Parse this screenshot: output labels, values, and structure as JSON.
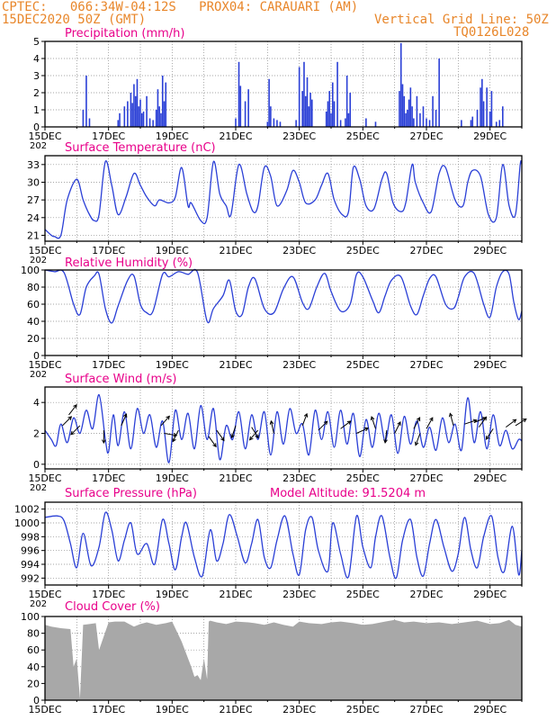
{
  "header": {
    "line1_left": "CPTEC:   066:34W-04:12S   PROX04: CARAUARI (AM)",
    "line2_left": "15DEC2020 50Z (GMT)",
    "line2_right": "Vertical Grid Line: 50Z",
    "line3_right": "TQ0126L028"
  },
  "colors": {
    "header": "#e8862a",
    "title": "#e8008a",
    "line": "#2a3fd6",
    "bar": "#2a3fd6",
    "cloud": "#a8a8a8",
    "arrow": "#000000",
    "grid": "#888888"
  },
  "x_axis": {
    "tick_labels": [
      "15DEC",
      "17DEC",
      "19DEC",
      "21DEC",
      "23DEC",
      "25DEC",
      "27DEC",
      "29DEC"
    ],
    "cut_label": "202"
  },
  "chart_data": [
    {
      "id": "precip",
      "type": "bar",
      "title": "Precipitation (mm/h)",
      "ylim": [
        0,
        5
      ],
      "yticks": [
        "0",
        "1",
        "2",
        "3",
        "4",
        "5"
      ],
      "x_days": [
        1.2,
        1.3,
        1.4,
        2.3,
        2.35,
        2.5,
        2.6,
        2.7,
        2.75,
        2.8,
        2.85,
        2.9,
        2.95,
        3.0,
        3.05,
        3.1,
        3.2,
        3.3,
        3.4,
        3.5,
        3.55,
        3.6,
        3.65,
        3.7,
        3.75,
        3.8,
        6.0,
        6.1,
        6.15,
        6.3,
        6.4,
        7.0,
        7.05,
        7.1,
        7.2,
        7.3,
        7.4,
        7.9,
        8.0,
        8.1,
        8.15,
        8.2,
        8.25,
        8.3,
        8.35,
        8.4,
        8.85,
        8.9,
        8.95,
        9.0,
        9.05,
        9.1,
        9.2,
        9.3,
        9.45,
        9.5,
        9.55,
        9.6,
        10.1,
        10.4,
        11.15,
        11.2,
        11.25,
        11.3,
        11.35,
        11.4,
        11.45,
        11.5,
        11.55,
        11.6,
        11.7,
        11.8,
        11.9,
        12.0,
        12.1,
        12.2,
        12.3,
        12.4,
        13.1,
        13.4,
        13.45,
        13.6,
        13.7,
        13.75,
        13.8,
        13.9,
        14.0,
        14.05,
        14.2,
        14.3,
        14.4
      ],
      "values": [
        1.0,
        3.0,
        0.5,
        0.4,
        0.8,
        1.2,
        1.5,
        2.0,
        1.4,
        2.5,
        1.8,
        2.8,
        1.2,
        1.6,
        0.8,
        0.9,
        1.8,
        0.5,
        0.4,
        1.0,
        2.2,
        1.2,
        0.8,
        3.0,
        1.5,
        2.6,
        0.5,
        3.8,
        2.4,
        1.5,
        2.2,
        0.3,
        2.8,
        1.2,
        0.5,
        0.4,
        0.3,
        0.4,
        3.5,
        2.1,
        3.8,
        1.8,
        2.9,
        1.2,
        2.0,
        1.6,
        0.9,
        1.5,
        2.1,
        0.8,
        2.6,
        1.5,
        3.8,
        0.4,
        0.5,
        3.0,
        0.8,
        2.0,
        0.5,
        0.3,
        2.1,
        4.9,
        2.5,
        1.8,
        0.8,
        1.0,
        1.6,
        2.3,
        1.2,
        0.5,
        1.8,
        0.8,
        1.2,
        0.5,
        0.4,
        1.8,
        1.0,
        4.0,
        0.4,
        0.4,
        0.6,
        1.0,
        2.3,
        2.8,
        1.5,
        2.3,
        0.9,
        2.1,
        0.3,
        0.4,
        1.2
      ]
    },
    {
      "id": "temp",
      "type": "line",
      "title": "Surface Temperature (nC)",
      "ylim": [
        20,
        34.5
      ],
      "yticks": [
        "21",
        "24",
        "27",
        "30",
        "33"
      ],
      "x_days": [
        0,
        0.2,
        0.3,
        0.5,
        0.7,
        1.0,
        1.2,
        1.4,
        1.55,
        1.7,
        1.9,
        2.1,
        2.3,
        2.55,
        2.8,
        3.0,
        3.2,
        3.45,
        3.6,
        3.9,
        4.1,
        4.3,
        4.5,
        4.6,
        4.9,
        5.1,
        5.3,
        5.5,
        5.7,
        5.85,
        6.1,
        6.35,
        6.55,
        6.7,
        6.9,
        7.1,
        7.3,
        7.6,
        7.8,
        8.0,
        8.2,
        8.5,
        8.7,
        8.9,
        9.1,
        9.35,
        9.55,
        9.7,
        9.9,
        10.1,
        10.35,
        10.6,
        10.75,
        10.95,
        11.2,
        11.35,
        11.55,
        11.65,
        11.9,
        12.15,
        12.4,
        12.6,
        12.9,
        13.15,
        13.3,
        13.45,
        13.7,
        13.95,
        14.2,
        14.4,
        14.6,
        14.8,
        14.95,
        15.0
      ],
      "values": [
        22.0,
        21.0,
        20.8,
        21.0,
        27.0,
        30.5,
        27.0,
        24.5,
        23.5,
        24.5,
        33.5,
        29.5,
        24.5,
        27.5,
        31.5,
        29.5,
        27.5,
        26.0,
        27.0,
        26.5,
        27.5,
        32.5,
        26.0,
        26.5,
        23.5,
        24.0,
        33.5,
        28.0,
        26.0,
        24.5,
        33.0,
        28.0,
        25.0,
        26.0,
        32.5,
        31.0,
        26.0,
        28.5,
        32.0,
        30.0,
        26.5,
        27.0,
        29.5,
        31.5,
        27.0,
        24.5,
        25.0,
        32.5,
        30.5,
        26.0,
        25.5,
        30.5,
        31.5,
        26.5,
        25.0,
        26.5,
        33.0,
        30.0,
        26.5,
        25.0,
        31.5,
        32.5,
        27.0,
        26.0,
        30.0,
        32.0,
        31.0,
        24.5,
        24.0,
        33.0,
        26.0,
        24.5,
        33.0,
        33.0
      ]
    },
    {
      "id": "rh",
      "type": "line",
      "title": "Relative Humidity (%)",
      "ylim": [
        0,
        100
      ],
      "yticks": [
        "0",
        "20",
        "40",
        "60",
        "80",
        "100"
      ],
      "x_days": [
        0,
        0.3,
        0.6,
        0.9,
        1.1,
        1.3,
        1.55,
        1.7,
        1.9,
        2.1,
        2.3,
        2.6,
        2.8,
        3.0,
        3.2,
        3.4,
        3.7,
        3.9,
        4.2,
        4.5,
        4.8,
        5.1,
        5.3,
        5.6,
        5.8,
        6.0,
        6.2,
        6.4,
        6.6,
        6.9,
        7.2,
        7.5,
        7.8,
        8.1,
        8.3,
        8.55,
        8.8,
        9.0,
        9.3,
        9.6,
        9.8,
        10.0,
        10.3,
        10.5,
        10.7,
        10.9,
        11.2,
        11.5,
        11.7,
        11.9,
        12.1,
        12.3,
        12.6,
        12.85,
        13.0,
        13.2,
        13.5,
        13.8,
        14.0,
        14.2,
        14.4,
        14.6,
        14.75,
        14.9,
        15.0
      ],
      "values": [
        100,
        98,
        97,
        60,
        48,
        80,
        93,
        95,
        55,
        38,
        58,
        88,
        93,
        60,
        50,
        52,
        95,
        92,
        98,
        95,
        97,
        40,
        55,
        70,
        88,
        52,
        48,
        80,
        90,
        55,
        50,
        78,
        92,
        62,
        55,
        80,
        96,
        75,
        52,
        60,
        95,
        92,
        65,
        50,
        70,
        88,
        92,
        58,
        48,
        70,
        90,
        92,
        60,
        55,
        68,
        92,
        96,
        60,
        45,
        80,
        98,
        95,
        62,
        42,
        52
      ]
    },
    {
      "id": "wind",
      "type": "line",
      "title": "Surface Wind (m/s)",
      "ylim": [
        -0.3,
        5
      ],
      "yticks": [
        "0",
        "2",
        "4"
      ],
      "x_days": [
        0,
        0.2,
        0.35,
        0.5,
        0.7,
        0.9,
        1.1,
        1.3,
        1.5,
        1.7,
        1.9,
        2.0,
        2.15,
        2.3,
        2.5,
        2.7,
        2.9,
        3.1,
        3.3,
        3.5,
        3.7,
        3.9,
        4.1,
        4.3,
        4.5,
        4.7,
        4.9,
        5.1,
        5.3,
        5.5,
        5.7,
        5.9,
        6.1,
        6.3,
        6.5,
        6.7,
        6.9,
        7.1,
        7.3,
        7.5,
        7.7,
        7.9,
        8.1,
        8.3,
        8.5,
        8.7,
        8.9,
        9.1,
        9.3,
        9.5,
        9.7,
        9.9,
        10.1,
        10.3,
        10.5,
        10.7,
        10.9,
        11.1,
        11.3,
        11.5,
        11.7,
        11.9,
        12.1,
        12.3,
        12.5,
        12.7,
        12.9,
        13.1,
        13.3,
        13.5,
        13.7,
        13.9,
        14.1,
        14.3,
        14.5,
        14.7,
        14.9,
        15.0
      ],
      "values": [
        2.2,
        1.6,
        1.2,
        2.6,
        1.4,
        3.0,
        2.0,
        3.5,
        2.3,
        4.5,
        1.6,
        0.8,
        3.2,
        1.2,
        3.4,
        1.0,
        3.6,
        2.0,
        3.2,
        1.1,
        2.8,
        0.1,
        3.5,
        1.6,
        3.3,
        1.0,
        3.8,
        1.6,
        3.6,
        0.3,
        2.5,
        1.6,
        3.4,
        1.0,
        3.2,
        1.6,
        3.4,
        0.6,
        3.4,
        1.3,
        3.6,
        2.0,
        2.6,
        0.6,
        3.5,
        1.6,
        3.4,
        1.1,
        3.5,
        1.3,
        3.3,
        0.5,
        2.9,
        1.1,
        3.3,
        1.5,
        3.2,
        0.7,
        3.1,
        1.3,
        2.8,
        1.1,
        2.4,
        0.9,
        3.0,
        1.4,
        2.6,
        0.9,
        4.3,
        1.4,
        3.4,
        1.0,
        3.2,
        1.2,
        2.2,
        1.0,
        1.6,
        1.5
      ]
    },
    {
      "id": "pres",
      "type": "line",
      "title": "Surface Pressure (hPa)",
      "ylim": [
        991,
        1003
      ],
      "yticks": [
        "992",
        "994",
        "996",
        "998",
        "1000",
        "1002"
      ],
      "x_days": [
        0,
        0.4,
        0.6,
        0.8,
        1.0,
        1.2,
        1.45,
        1.7,
        1.9,
        2.1,
        2.3,
        2.5,
        2.7,
        2.9,
        3.2,
        3.45,
        3.7,
        3.9,
        4.1,
        4.3,
        4.45,
        4.7,
        4.95,
        5.2,
        5.4,
        5.6,
        5.8,
        6.05,
        6.3,
        6.5,
        6.7,
        6.9,
        7.1,
        7.3,
        7.55,
        7.8,
        8.0,
        8.2,
        8.4,
        8.6,
        8.9,
        9.05,
        9.3,
        9.55,
        9.8,
        10.0,
        10.25,
        10.4,
        10.6,
        10.85,
        11.05,
        11.25,
        11.5,
        11.7,
        11.9,
        12.1,
        12.3,
        12.55,
        12.8,
        13.0,
        13.2,
        13.4,
        13.6,
        13.8,
        14.05,
        14.25,
        14.45,
        14.7,
        14.9,
        15.0
      ],
      "values": [
        1000.8,
        1001.0,
        1000.3,
        997.0,
        993.5,
        998.5,
        993.8,
        996.5,
        1001.5,
        999.0,
        994.5,
        997.5,
        1000.0,
        995.5,
        997.0,
        994.0,
        1000.5,
        997.0,
        993.2,
        998.0,
        1000.0,
        995.0,
        992.3,
        999.0,
        994.5,
        997.0,
        1001.2,
        998.0,
        994.2,
        997.0,
        1000.5,
        995.0,
        993.5,
        997.5,
        1001.0,
        995.5,
        992.5,
        999.0,
        1000.8,
        996.0,
        993.0,
        1000.0,
        995.5,
        992.2,
        1001.0,
        996.5,
        993.5,
        998.0,
        1001.0,
        995.0,
        992.0,
        997.5,
        1000.5,
        995.0,
        992.3,
        997.0,
        1000.5,
        996.5,
        993.0,
        995.5,
        1000.8,
        996.0,
        993.5,
        998.0,
        1001.0,
        995.0,
        993.0,
        999.5,
        992.5,
        996.0
      ]
    },
    {
      "id": "cloud",
      "type": "area",
      "title": "Cloud Cover (%)",
      "ylim": [
        0,
        100
      ],
      "yticks": [
        "0",
        "20",
        "40",
        "60",
        "80",
        "100"
      ],
      "x_days": [
        0,
        0.2,
        0.5,
        0.8,
        0.9,
        1.0,
        1.1,
        1.2,
        1.4,
        1.6,
        1.7,
        2.0,
        2.2,
        2.5,
        2.8,
        3.0,
        3.2,
        3.5,
        3.8,
        4.0,
        4.3,
        4.6,
        4.7,
        4.8,
        4.9,
        5.0,
        5.1,
        5.15,
        5.2,
        5.4,
        5.7,
        6.0,
        6.4,
        6.6,
        6.9,
        7.2,
        7.5,
        7.8,
        8.0,
        8.3,
        8.7,
        9.0,
        9.3,
        9.7,
        10.0,
        10.3,
        10.7,
        11.0,
        11.3,
        11.6,
        12.0,
        12.4,
        12.8,
        13.2,
        13.6,
        14.0,
        14.3,
        14.6,
        14.8,
        15.0
      ],
      "values": [
        90,
        88,
        86,
        85,
        40,
        50,
        2,
        90,
        91,
        92,
        60,
        93,
        94,
        94,
        88,
        91,
        93,
        90,
        92,
        94,
        70,
        40,
        28,
        30,
        24,
        50,
        25,
        94,
        95,
        93,
        91,
        94,
        93,
        92,
        90,
        93,
        90,
        88,
        94,
        92,
        91,
        93,
        94,
        92,
        90,
        91,
        94,
        96,
        93,
        94,
        92,
        93,
        91,
        93,
        95,
        91,
        92,
        96,
        90,
        88
      ]
    }
  ],
  "panel_extras": {
    "pres_note": "Model Altitude: 91.5204 m"
  },
  "wind_arrows": [
    {
      "day": 0.55,
      "v": 2.5,
      "u": 1,
      "w": 1
    },
    {
      "day": 0.75,
      "v": 3.2,
      "u": 0.7,
      "w": 0.9
    },
    {
      "day": 1.1,
      "v": 2.5,
      "u": -0.7,
      "w": -0.7
    },
    {
      "day": 1.85,
      "v": 2.2,
      "u": 0,
      "w": -1.6
    },
    {
      "day": 2.4,
      "v": 2.5,
      "u": 0.4,
      "w": 0.9
    },
    {
      "day": 3.65,
      "v": 2.5,
      "u": 0.8,
      "w": 0.9
    },
    {
      "day": 3.75,
      "v": 2.0,
      "u": 1.2,
      "w": -0.2
    },
    {
      "day": 4.2,
      "v": 2.2,
      "u": -0.5,
      "w": -1
    },
    {
      "day": 5.15,
      "v": 1.8,
      "u": 0.5,
      "w": -0.7
    },
    {
      "day": 5.4,
      "v": 2.2,
      "u": 0.5,
      "w": -0.7
    },
    {
      "day": 6.0,
      "v": 2.5,
      "u": -0.3,
      "w": -0.9
    },
    {
      "day": 6.5,
      "v": 2.4,
      "u": 0.5,
      "w": -0.8
    },
    {
      "day": 6.7,
      "v": 2.2,
      "u": -0.6,
      "w": -0.7
    },
    {
      "day": 7.2,
      "v": 2.0,
      "u": -0.2,
      "w": 0.9
    },
    {
      "day": 8.1,
      "v": 2.5,
      "u": 0.6,
      "w": 1.6
    },
    {
      "day": 8.6,
      "v": 2.2,
      "u": 0.6,
      "w": 0.6
    },
    {
      "day": 9.3,
      "v": 2.3,
      "u": 0.8,
      "w": 0.6
    },
    {
      "day": 9.8,
      "v": 2.0,
      "u": 1.1,
      "w": 0.5
    },
    {
      "day": 10.4,
      "v": 2.3,
      "u": -0.3,
      "w": 0.9
    },
    {
      "day": 10.75,
      "v": 2.2,
      "u": -0.1,
      "w": -0.8
    },
    {
      "day": 11.0,
      "v": 2.0,
      "u": 0.4,
      "w": 0.8
    },
    {
      "day": 11.6,
      "v": 2.3,
      "u": 0.6,
      "w": 1.1
    },
    {
      "day": 11.8,
      "v": 2.0,
      "u": -0.3,
      "w": -0.8
    },
    {
      "day": 12.0,
      "v": 2.3,
      "u": 0.5,
      "w": 0.9
    },
    {
      "day": 12.85,
      "v": 2.5,
      "u": -0.3,
      "w": 1.1
    },
    {
      "day": 13.2,
      "v": 2.6,
      "u": 1.2,
      "w": 0.4
    },
    {
      "day": 13.5,
      "v": 2.7,
      "u": 1.2,
      "w": 0.5
    },
    {
      "day": 13.65,
      "v": 2.4,
      "u": 0.8,
      "w": 1.1
    },
    {
      "day": 14.1,
      "v": 2.3,
      "u": -0.4,
      "w": -0.6
    },
    {
      "day": 14.5,
      "v": 2.4,
      "u": 0.8,
      "w": 0.6
    },
    {
      "day": 14.8,
      "v": 2.5,
      "u": 0.8,
      "w": 0.5
    }
  ]
}
